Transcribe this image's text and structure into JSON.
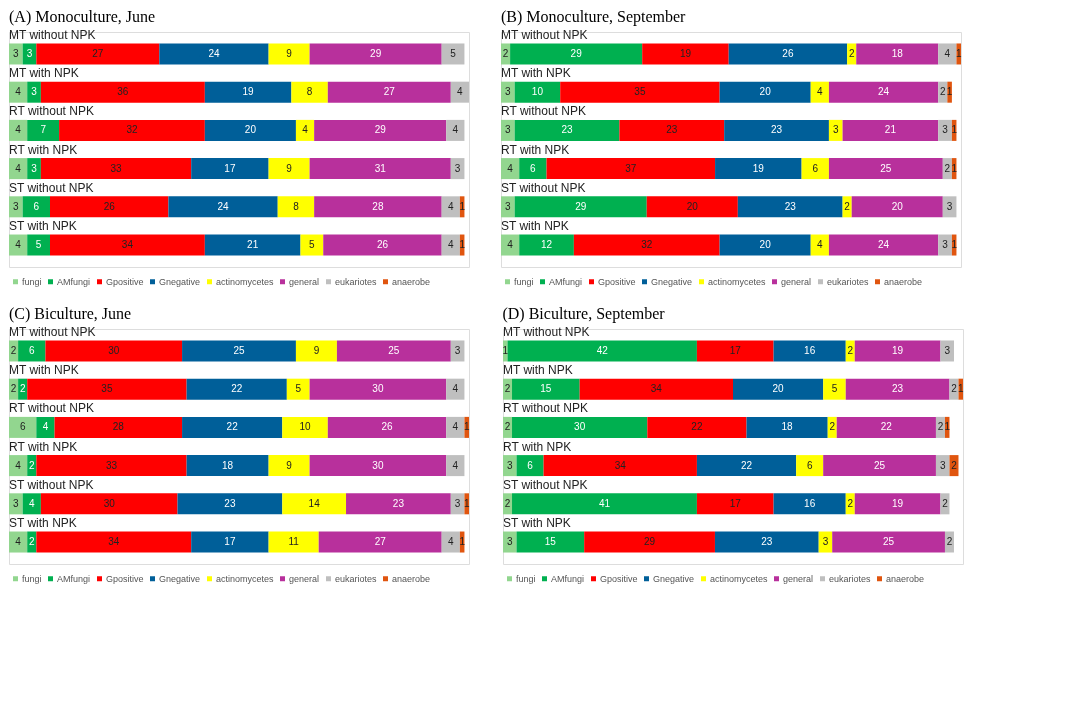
{
  "chart_data": [
    {
      "type": "bar",
      "orientation": "horizontal",
      "stacked": true,
      "data_labels": true,
      "legend": "bottom",
      "title": "(A) Monoculture, June",
      "categories": [
        "MT  without NPK",
        "MT  with NPK",
        "RT  without NPK",
        "RT  with NPK",
        "ST  without NPK",
        "ST  with NPK"
      ],
      "series": [
        {
          "name": "fungi",
          "color": "#92d68f",
          "values": [
            3,
            4,
            4,
            4,
            3,
            4
          ]
        },
        {
          "name": "AMfungi",
          "color": "#00b050",
          "values": [
            3,
            3,
            7,
            3,
            6,
            5
          ]
        },
        {
          "name": "Gpositive",
          "color": "#ff0000",
          "values": [
            27,
            36,
            32,
            33,
            26,
            34
          ]
        },
        {
          "name": "Gnegative",
          "color": "#005f99",
          "values": [
            24,
            19,
            20,
            17,
            24,
            21
          ]
        },
        {
          "name": "actinomycetes",
          "color": "#ffff00",
          "values": [
            9,
            8,
            4,
            9,
            8,
            5
          ]
        },
        {
          "name": "general",
          "color": "#b8309c",
          "values": [
            29,
            27,
            29,
            31,
            28,
            26
          ]
        },
        {
          "name": "eukariotes",
          "color": "#bfbfbf",
          "values": [
            5,
            4,
            4,
            3,
            4,
            4
          ]
        },
        {
          "name": "anaerobe",
          "color": "#e0550f",
          "values": [
            null,
            null,
            null,
            null,
            1,
            1
          ]
        }
      ]
    },
    {
      "type": "bar",
      "orientation": "horizontal",
      "stacked": true,
      "data_labels": true,
      "legend": "bottom",
      "title": "(B) Monoculture, September",
      "categories": [
        "MT  without NPK",
        "MT  with NPK",
        "RT  without NPK",
        "RT  with NPK",
        "ST  without NPK",
        "ST  with NPK"
      ],
      "series": [
        {
          "name": "fungi",
          "color": "#92d68f",
          "values": [
            2,
            3,
            3,
            4,
            3,
            4
          ]
        },
        {
          "name": "AMfungi",
          "color": "#00b050",
          "values": [
            29,
            10,
            23,
            6,
            29,
            12
          ]
        },
        {
          "name": "Gpositive",
          "color": "#ff0000",
          "values": [
            19,
            35,
            23,
            37,
            20,
            32
          ]
        },
        {
          "name": "Gnegative",
          "color": "#005f99",
          "values": [
            26,
            20,
            23,
            19,
            23,
            20
          ]
        },
        {
          "name": "actinomycetes",
          "color": "#ffff00",
          "values": [
            2,
            4,
            3,
            6,
            2,
            4
          ]
        },
        {
          "name": "general",
          "color": "#b8309c",
          "values": [
            18,
            24,
            21,
            25,
            20,
            24
          ]
        },
        {
          "name": "eukariotes",
          "color": "#bfbfbf",
          "values": [
            4,
            2,
            3,
            2,
            3,
            3
          ]
        },
        {
          "name": "anaerobe",
          "color": "#e0550f",
          "values": [
            1,
            1,
            1,
            1,
            null,
            1
          ]
        }
      ]
    },
    {
      "type": "bar",
      "orientation": "horizontal",
      "stacked": true,
      "data_labels": true,
      "legend": "bottom",
      "title": "(C) Biculture, June",
      "categories": [
        "MT  without NPK",
        "MT  with NPK",
        "RT  without NPK",
        "RT  with NPK",
        "ST  without NPK",
        "ST  with NPK"
      ],
      "series": [
        {
          "name": "fungi",
          "color": "#92d68f",
          "values": [
            2,
            2,
            6,
            4,
            3,
            4
          ]
        },
        {
          "name": "AMfungi",
          "color": "#00b050",
          "values": [
            6,
            2,
            4,
            2,
            4,
            2
          ]
        },
        {
          "name": "Gpositive",
          "color": "#ff0000",
          "values": [
            30,
            35,
            28,
            33,
            30,
            34
          ]
        },
        {
          "name": "Gnegative",
          "color": "#005f99",
          "values": [
            25,
            22,
            22,
            18,
            23,
            17
          ]
        },
        {
          "name": "actinomycetes",
          "color": "#ffff00",
          "values": [
            9,
            5,
            10,
            9,
            14,
            11
          ]
        },
        {
          "name": "general",
          "color": "#b8309c",
          "values": [
            25,
            30,
            26,
            30,
            23,
            27
          ]
        },
        {
          "name": "eukariotes",
          "color": "#bfbfbf",
          "values": [
            3,
            4,
            4,
            4,
            3,
            4
          ]
        },
        {
          "name": "anaerobe",
          "color": "#e0550f",
          "values": [
            null,
            null,
            1,
            null,
            1,
            1
          ]
        }
      ]
    },
    {
      "type": "bar",
      "orientation": "horizontal",
      "stacked": true,
      "data_labels": true,
      "legend": "bottom",
      "title": "(D) Biculture, September",
      "categories": [
        "MT  without NPK",
        "MT  with NPK",
        "RT  without NPK",
        "RT  with NPK",
        "ST  without NPK",
        "ST  with NPK"
      ],
      "series": [
        {
          "name": "fungi",
          "color": "#92d68f",
          "values": [
            1,
            2,
            2,
            3,
            2,
            3
          ]
        },
        {
          "name": "AMfungi",
          "color": "#00b050",
          "values": [
            42,
            15,
            30,
            6,
            41,
            15
          ]
        },
        {
          "name": "Gpositive",
          "color": "#ff0000",
          "values": [
            17,
            34,
            22,
            34,
            17,
            29
          ]
        },
        {
          "name": "Gnegative",
          "color": "#005f99",
          "values": [
            16,
            20,
            18,
            22,
            16,
            23
          ]
        },
        {
          "name": "actinomycetes",
          "color": "#ffff00",
          "values": [
            2,
            5,
            2,
            6,
            2,
            3
          ]
        },
        {
          "name": "general",
          "color": "#b8309c",
          "values": [
            19,
            23,
            22,
            25,
            19,
            25
          ]
        },
        {
          "name": "eukariotes",
          "color": "#bfbfbf",
          "values": [
            3,
            2,
            2,
            3,
            2,
            2
          ]
        },
        {
          "name": "anaerobe",
          "color": "#e0550f",
          "values": [
            null,
            1,
            1,
            2,
            null,
            null
          ]
        }
      ]
    }
  ]
}
